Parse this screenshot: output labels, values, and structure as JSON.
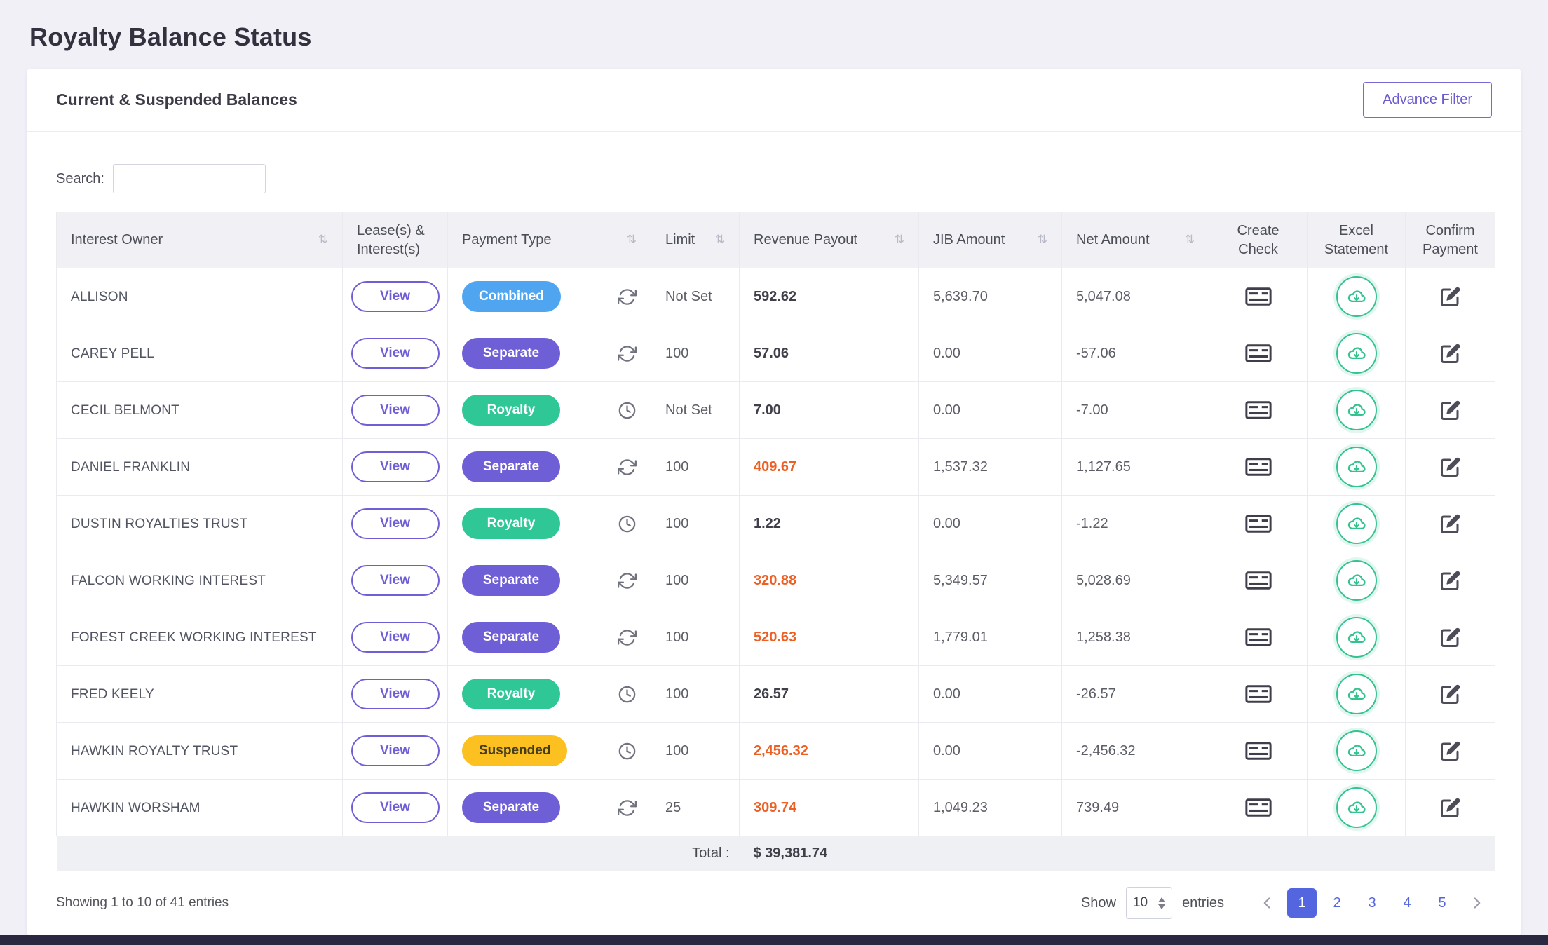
{
  "page": {
    "title": "Royalty Balance Status"
  },
  "card": {
    "title": "Current & Suspended Balances",
    "advance_filter_label": "Advance Filter"
  },
  "search": {
    "label": "Search:",
    "value": ""
  },
  "icons": {
    "sort": "⇅"
  },
  "colors": {
    "badge_combined": "#50a5f1",
    "badge_separate": "#6f5fd6",
    "badge_royalty": "#2fc795",
    "badge_suspended": "#fcc021",
    "revenue_alert": "#ee5f23",
    "accent_purple": "#6f5fd6",
    "pagination_active": "#5465e0",
    "excel_icon": "#34c38f"
  },
  "table": {
    "headers": {
      "interest_owner": "Interest Owner",
      "lease_interest": "Lease(s) & Interest(s)",
      "payment_type": "Payment Type",
      "limit": "Limit",
      "revenue_payout": "Revenue Payout",
      "jib_amount": "JIB Amount",
      "net_amount": "Net Amount",
      "create_check": "Create Check",
      "excel_statement": "Excel Statement",
      "confirm_payment": "Confirm Payment"
    },
    "view_label": "View",
    "rows": [
      {
        "owner": "ALLISON",
        "payment_type": "Combined",
        "variant": "combined",
        "icon": "refresh",
        "limit": "Not Set",
        "revenue": "592.62",
        "revenue_alert": false,
        "jib": "5,639.70",
        "net": "5,047.08"
      },
      {
        "owner": "CAREY PELL",
        "payment_type": "Separate",
        "variant": "separate",
        "icon": "refresh",
        "limit": "100",
        "revenue": "57.06",
        "revenue_alert": false,
        "jib": "0.00",
        "net": "-57.06"
      },
      {
        "owner": "CECIL BELMONT",
        "payment_type": "Royalty",
        "variant": "royalty",
        "icon": "clock",
        "limit": "Not Set",
        "revenue": "7.00",
        "revenue_alert": false,
        "jib": "0.00",
        "net": "-7.00"
      },
      {
        "owner": "DANIEL FRANKLIN",
        "payment_type": "Separate",
        "variant": "separate",
        "icon": "refresh",
        "limit": "100",
        "revenue": "409.67",
        "revenue_alert": true,
        "jib": "1,537.32",
        "net": "1,127.65"
      },
      {
        "owner": "DUSTIN ROYALTIES TRUST",
        "payment_type": "Royalty",
        "variant": "royalty",
        "icon": "clock",
        "limit": "100",
        "revenue": "1.22",
        "revenue_alert": false,
        "jib": "0.00",
        "net": "-1.22"
      },
      {
        "owner": "FALCON WORKING INTEREST",
        "payment_type": "Separate",
        "variant": "separate",
        "icon": "refresh",
        "limit": "100",
        "revenue": "320.88",
        "revenue_alert": true,
        "jib": "5,349.57",
        "net": "5,028.69"
      },
      {
        "owner": "FOREST CREEK WORKING INTEREST",
        "payment_type": "Separate",
        "variant": "separate",
        "icon": "refresh",
        "limit": "100",
        "revenue": "520.63",
        "revenue_alert": true,
        "jib": "1,779.01",
        "net": "1,258.38"
      },
      {
        "owner": "FRED KEELY",
        "payment_type": "Royalty",
        "variant": "royalty",
        "icon": "clock",
        "limit": "100",
        "revenue": "26.57",
        "revenue_alert": false,
        "jib": "0.00",
        "net": "-26.57"
      },
      {
        "owner": "HAWKIN ROYALTY TRUST",
        "payment_type": "Suspended",
        "variant": "suspended",
        "icon": "clock",
        "limit": "100",
        "revenue": "2,456.32",
        "revenue_alert": true,
        "jib": "0.00",
        "net": "-2,456.32"
      },
      {
        "owner": "HAWKIN WORSHAM",
        "payment_type": "Separate",
        "variant": "separate",
        "icon": "refresh",
        "limit": "25",
        "revenue": "309.74",
        "revenue_alert": true,
        "jib": "1,049.23",
        "net": "739.49"
      }
    ],
    "total_label": "Total :",
    "total_value": "$ 39,381.74"
  },
  "footer": {
    "showing": "Showing 1 to 10 of 41 entries",
    "show_label": "Show",
    "show_value": "10",
    "entries_label": "entries",
    "pages": [
      "1",
      "2",
      "3",
      "4",
      "5"
    ],
    "active_page": "1"
  }
}
